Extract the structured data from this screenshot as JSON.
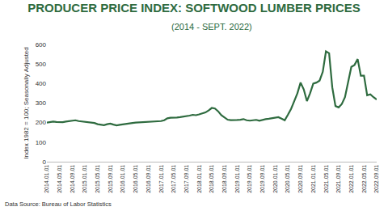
{
  "chart_data": {
    "type": "line",
    "title": "PRODUCER PRICE INDEX: SOFTWOOD LUMBER PRICES",
    "subtitle": "(2014 - SEPT. 2022)",
    "y_label": "Index 1982 = 100; Seasonally Adjusted",
    "source": "Data Source: Bureau of Labor Statistics",
    "color": "#2e6b3f",
    "grid": false,
    "categories": [
      "2014.01.01",
      null,
      null,
      null,
      "2014.05.01",
      null,
      null,
      null,
      "2014.09.01",
      null,
      null,
      null,
      "2015.01.01",
      null,
      null,
      null,
      "2015.05.01",
      null,
      null,
      null,
      "2015.09.01",
      null,
      null,
      null,
      "2016.01.01",
      null,
      null,
      null,
      "2016.05.01",
      null,
      null,
      null,
      "2016.09.01",
      null,
      null,
      null,
      "2017.01.01",
      null,
      null,
      null,
      "2017.05.01",
      null,
      null,
      null,
      "2017.09.01",
      null,
      null,
      null,
      "2018.01.01",
      null,
      null,
      null,
      "2018.05.01",
      null,
      null,
      null,
      "2018.09.01",
      null,
      null,
      null,
      "2019.01.01",
      null,
      null,
      null,
      "2019.05.01",
      null,
      null,
      null,
      "2019.09.01",
      null,
      null,
      null,
      "2020.01.01",
      null,
      null,
      null,
      "2020.05.01",
      null,
      null,
      null,
      "2020.09.01",
      null,
      null,
      null,
      "2021.01.01",
      null,
      null,
      null,
      "2021.05.01",
      null,
      null,
      null,
      "2021.09.01",
      null,
      null,
      null,
      "2022.01.01",
      null,
      null,
      null,
      "2022.05.01",
      null,
      null,
      null,
      "2022.09.01"
    ],
    "values": [
      200,
      202,
      205,
      203,
      201,
      202,
      205,
      207,
      209,
      212,
      208,
      206,
      206,
      204,
      202,
      198,
      192,
      190,
      187,
      192,
      195,
      190,
      186,
      189,
      192,
      195,
      197,
      198,
      200,
      201,
      202,
      203,
      202,
      203,
      205,
      206,
      208,
      212,
      222,
      225,
      224,
      226,
      228,
      230,
      232,
      236,
      240,
      238,
      242,
      248,
      252,
      262,
      275,
      272,
      258,
      238,
      225,
      215,
      213,
      212,
      214,
      215,
      218,
      212,
      210,
      212,
      214,
      210,
      215,
      218,
      220,
      222,
      225,
      228,
      220,
      212,
      240,
      270,
      310,
      350,
      405,
      370,
      310,
      350,
      400,
      405,
      415,
      460,
      565,
      555,
      380,
      285,
      278,
      295,
      330,
      410,
      485,
      495,
      525,
      440,
      440,
      340,
      345,
      330,
      318
    ],
    "ylim": [
      0,
      600
    ],
    "yticks": [
      0,
      100,
      200,
      300,
      400,
      500,
      600
    ]
  }
}
